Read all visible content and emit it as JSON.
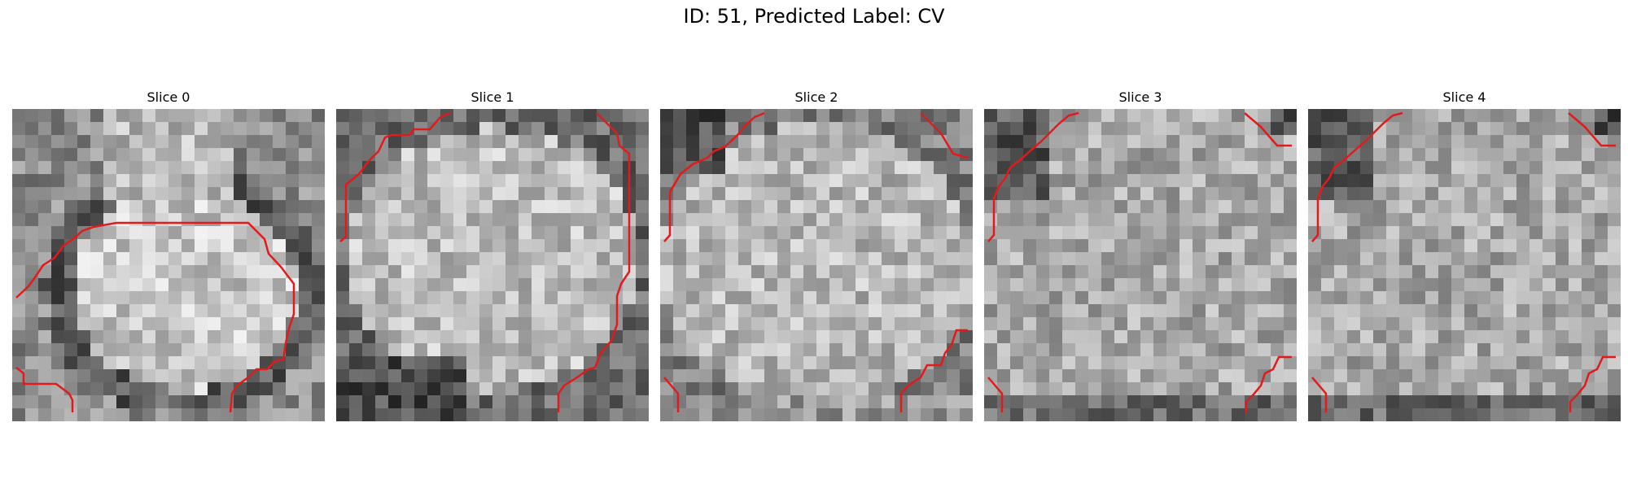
{
  "figure": {
    "title": "ID: 51, Predicted Label: CV"
  },
  "slices": [
    {
      "label": "Slice 0",
      "seed": 11,
      "pattern": "blob"
    },
    {
      "label": "Slice 1",
      "seed": 23,
      "pattern": "blob-wide"
    },
    {
      "label": "Slice 2",
      "seed": 37,
      "pattern": "bright"
    },
    {
      "label": "Slice 3",
      "seed": 41,
      "pattern": "noisy"
    },
    {
      "label": "Slice 4",
      "seed": 53,
      "pattern": "noisy"
    }
  ],
  "colors": {
    "contour": "#e31a1c"
  }
}
